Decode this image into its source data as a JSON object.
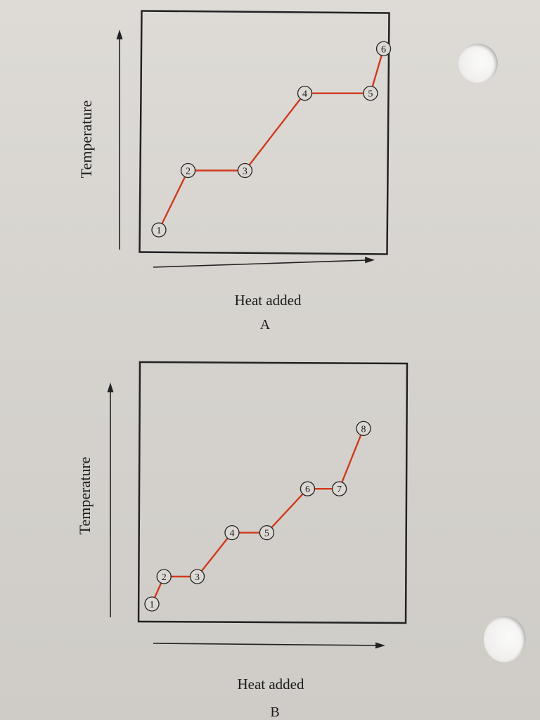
{
  "diagrams": [
    {
      "id": "A",
      "caption": "A",
      "ylabel": "Temperature",
      "xlabel": "Heat added",
      "points": [
        {
          "label": "1",
          "heat": 0.0,
          "temp": 0.0
        },
        {
          "label": "2",
          "heat": 1.0,
          "temp": 1.0
        },
        {
          "label": "3",
          "heat": 2.95,
          "temp": 1.0
        },
        {
          "label": "4",
          "heat": 5.0,
          "temp": 2.3
        },
        {
          "label": "5",
          "heat": 7.25,
          "temp": 2.3
        },
        {
          "label": "6",
          "heat": 7.7,
          "temp": 3.05
        }
      ]
    },
    {
      "id": "B",
      "caption": "B",
      "ylabel": "Temperature",
      "xlabel": "Heat added",
      "points": [
        {
          "label": "1",
          "heat": 0.0,
          "temp": 0.0
        },
        {
          "label": "2",
          "heat": 0.4,
          "temp": 0.5
        },
        {
          "label": "3",
          "heat": 1.5,
          "temp": 0.5
        },
        {
          "label": "4",
          "heat": 2.65,
          "temp": 1.3
        },
        {
          "label": "5",
          "heat": 3.8,
          "temp": 1.3
        },
        {
          "label": "6",
          "heat": 5.15,
          "temp": 2.1
        },
        {
          "label": "7",
          "heat": 6.2,
          "temp": 2.1
        },
        {
          "label": "8",
          "heat": 7.0,
          "temp": 3.2
        }
      ]
    }
  ],
  "colors": {
    "curve": "#cf3a1c",
    "frame": "#222222",
    "marker_fill": "#dcd9d4"
  }
}
